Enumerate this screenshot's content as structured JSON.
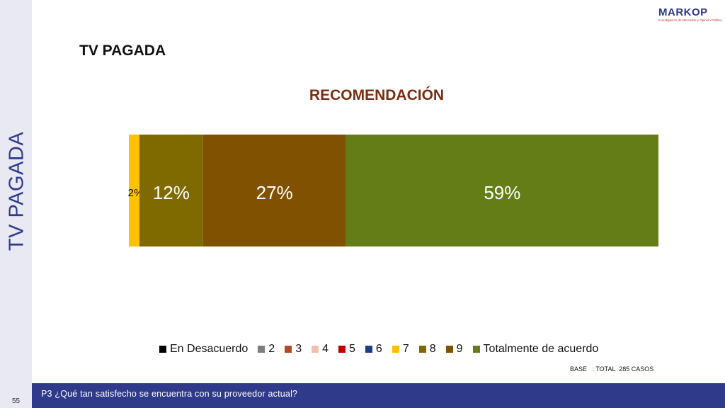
{
  "side_title": "TV PAGADA",
  "section_title": "TV PAGADA",
  "logo": {
    "name": "MARKOP",
    "tagline": "Investigación de Mercados y Opinión Pública"
  },
  "chart_data": {
    "type": "bar",
    "orientation": "horizontal-stacked",
    "title": "RECOMENDACIÓN",
    "categories": [
      ""
    ],
    "xlim": [
      0,
      100
    ],
    "series": [
      {
        "name": "En Desacuerdo",
        "values": [
          0
        ],
        "color": "#000000"
      },
      {
        "name": "2",
        "values": [
          0
        ],
        "color": "#7f7f7f"
      },
      {
        "name": "3",
        "values": [
          0
        ],
        "color": "#b5472a"
      },
      {
        "name": "4",
        "values": [
          0
        ],
        "color": "#f2c0ac"
      },
      {
        "name": "5",
        "values": [
          0
        ],
        "color": "#c00000"
      },
      {
        "name": "6",
        "values": [
          0
        ],
        "color": "#1f3c88"
      },
      {
        "name": "7",
        "values": [
          2
        ],
        "color": "#ffc000",
        "label": "2%"
      },
      {
        "name": "8",
        "values": [
          12
        ],
        "color": "#7f6a00",
        "label": "12%"
      },
      {
        "name": "9",
        "values": [
          27
        ],
        "color": "#7f5100",
        "label": "27%"
      },
      {
        "name": "Totalmente de acuerdo",
        "values": [
          59
        ],
        "color": "#647d16",
        "label": "59%"
      }
    ],
    "legend_position": "bottom",
    "grid": false
  },
  "base_note": "BASE   : TOTAL  285 CASOS",
  "footer": {
    "page_number": "55",
    "question": "P3 ¿Qué tan satisfecho se encuentra con su proveedor actual?"
  }
}
